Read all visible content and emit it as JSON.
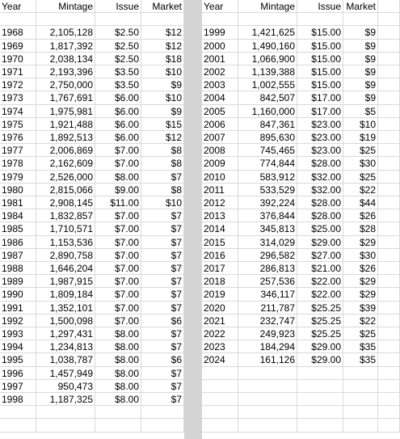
{
  "headers": {
    "year": "Year",
    "mintage": "Mintage",
    "issue": "Issue",
    "market": "Market"
  },
  "left_table": [
    [
      "1968",
      "2,105,128",
      "$2.50",
      "$12"
    ],
    [
      "1969",
      "1,817,392",
      "$2.50",
      "$12"
    ],
    [
      "1970",
      "2,038,134",
      "$2.50",
      "$18"
    ],
    [
      "1971",
      "2,193,396",
      "$3.50",
      "$10"
    ],
    [
      "1972",
      "2,750,000",
      "$3.50",
      "$9"
    ],
    [
      "1973",
      "1,767,691",
      "$6.00",
      "$10"
    ],
    [
      "1974",
      "1,975,981",
      "$6.00",
      "$9"
    ],
    [
      "1975",
      "1,921,488",
      "$6.00",
      "$15"
    ],
    [
      "1976",
      "1,892,513",
      "$6.00",
      "$12"
    ],
    [
      "1977",
      "2,006,869",
      "$7.00",
      "$8"
    ],
    [
      "1978",
      "2,162,609",
      "$7.00",
      "$8"
    ],
    [
      "1979",
      "2,526,000",
      "$8.00",
      "$7"
    ],
    [
      "1980",
      "2,815,066",
      "$9.00",
      "$8"
    ],
    [
      "1981",
      "2,908,145",
      "$11.00",
      "$10"
    ],
    [
      "1984",
      "1,832,857",
      "$7.00",
      "$7"
    ],
    [
      "1985",
      "1,710,571",
      "$7.00",
      "$7"
    ],
    [
      "1986",
      "1,153,536",
      "$7.00",
      "$7"
    ],
    [
      "1987",
      "2,890,758",
      "$7.00",
      "$7"
    ],
    [
      "1988",
      "1,646,204",
      "$7.00",
      "$7"
    ],
    [
      "1989",
      "1,987,915",
      "$7.00",
      "$7"
    ],
    [
      "1990",
      "1,809,184",
      "$7.00",
      "$7"
    ],
    [
      "1991",
      "1,352,101",
      "$7.00",
      "$7"
    ],
    [
      "1992",
      "1,500,098",
      "$7.00",
      "$6"
    ],
    [
      "1993",
      "1,297,431",
      "$8.00",
      "$7"
    ],
    [
      "1994",
      "1,234,813",
      "$8.00",
      "$7"
    ],
    [
      "1995",
      "1,038,787",
      "$8.00",
      "$6"
    ],
    [
      "1996",
      "1,457,949",
      "$8.00",
      "$7"
    ],
    [
      "1997",
      "950,473",
      "$8.00",
      "$7"
    ],
    [
      "1998",
      "1,187,325",
      "$8.00",
      "$7"
    ]
  ],
  "right_table": [
    [
      "1999",
      "1,421,625",
      "$15.00",
      "$9"
    ],
    [
      "2000",
      "1,490,160",
      "$15.00",
      "$9"
    ],
    [
      "2001",
      "1,066,900",
      "$15.00",
      "$9"
    ],
    [
      "2002",
      "1,139,388",
      "$15.00",
      "$9"
    ],
    [
      "2003",
      "1,002,555",
      "$15.00",
      "$9"
    ],
    [
      "2004",
      "842,507",
      "$17.00",
      "$9"
    ],
    [
      "2005",
      "1,160,000",
      "$17.00",
      "$5"
    ],
    [
      "2006",
      "847,361",
      "$23.00",
      "$10"
    ],
    [
      "2007",
      "895,630",
      "$23.00",
      "$19"
    ],
    [
      "2008",
      "745,465",
      "$23.00",
      "$25"
    ],
    [
      "2009",
      "774,844",
      "$28.00",
      "$30"
    ],
    [
      "2010",
      "583,912",
      "$32.00",
      "$25"
    ],
    [
      "2011",
      "533,529",
      "$32.00",
      "$22"
    ],
    [
      "2012",
      "392,224",
      "$28.00",
      "$44"
    ],
    [
      "2013",
      "376,844",
      "$28.00",
      "$26"
    ],
    [
      "2014",
      "345,813",
      "$25.00",
      "$28"
    ],
    [
      "2015",
      "314,029",
      "$29.00",
      "$29"
    ],
    [
      "2016",
      "296,582",
      "$27.00",
      "$30"
    ],
    [
      "2017",
      "286,813",
      "$21.00",
      "$26"
    ],
    [
      "2018",
      "257,536",
      "$22.00",
      "$29"
    ],
    [
      "2019",
      "346,117",
      "$22.00",
      "$29"
    ],
    [
      "2020",
      "211,787",
      "$25.25",
      "$39"
    ],
    [
      "2021",
      "232,747",
      "$25.25",
      "$22"
    ],
    [
      "2022",
      "249,923",
      "$25.25",
      "$25"
    ],
    [
      "2023",
      "184,294",
      "$29.00",
      "$35"
    ],
    [
      "2024",
      "161,126",
      "$29.00",
      "$35"
    ]
  ],
  "colors": {
    "gridline": "#d9d9d9",
    "divider": "#d4d4d4"
  }
}
